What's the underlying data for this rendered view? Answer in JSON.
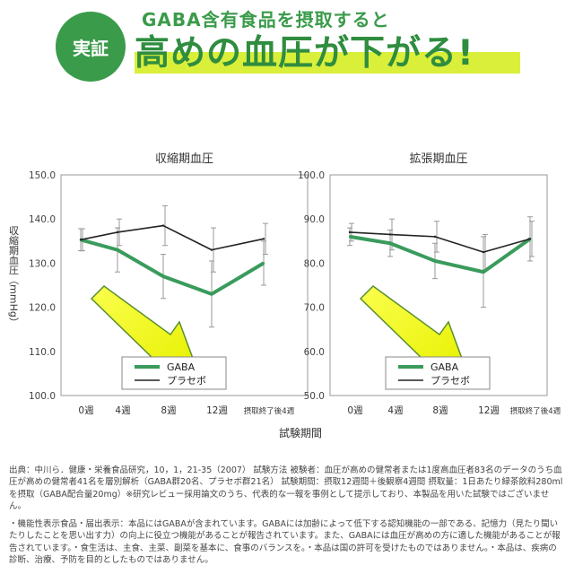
{
  "header": {
    "badge": "実証",
    "subtitle": "GABA含有食品を摂取すると",
    "title": "高めの血圧が下がる!"
  },
  "chart_data": [
    {
      "type": "line",
      "title": "収縮期血圧",
      "ylabel": "収縮期血圧（mmHg）",
      "xlabel": "試験期間",
      "categories": [
        "0週",
        "4週",
        "8週",
        "12週",
        "摂取終了後4週"
      ],
      "ylim": [
        100,
        150
      ],
      "yticks": [
        "100.0",
        "110.0",
        "120.0",
        "130.0",
        "140.0",
        "150.0"
      ],
      "series": [
        {
          "name": "GABA",
          "color": "#3a9b5c",
          "values": [
            135.3,
            133,
            127,
            123,
            130
          ],
          "err": [
            2.5,
            5,
            5,
            7.5,
            5
          ]
        },
        {
          "name": "プラセボ",
          "color": "#222222",
          "values": [
            135.3,
            137,
            138.5,
            133,
            135.5
          ],
          "err": [
            2.5,
            3,
            4.5,
            5,
            3.5
          ]
        }
      ],
      "legend": "bottom-right",
      "grid": false
    },
    {
      "type": "line",
      "title": "拡張期血圧",
      "xlabel": "試験期間",
      "categories": [
        "0週",
        "4週",
        "8週",
        "12週",
        "摂取終了後4週"
      ],
      "ylim": [
        50,
        100
      ],
      "yticks": [
        "50.0",
        "60.0",
        "70.0",
        "80.0",
        "90.0",
        "100.0"
      ],
      "series": [
        {
          "name": "GABA",
          "color": "#3a9b5c",
          "values": [
            86,
            84.5,
            80.5,
            78,
            85.5
          ],
          "err": [
            2,
            3,
            4,
            8,
            5
          ]
        },
        {
          "name": "プラセボ",
          "color": "#222222",
          "values": [
            87,
            86.5,
            86,
            82.5,
            85.5
          ],
          "err": [
            2,
            3.5,
            3.5,
            4,
            4
          ]
        }
      ],
      "legend": "bottom-right",
      "grid": false
    }
  ],
  "footnotes": {
    "source": "出典：中川ら．健康・栄養食品研究，10，1，21-35（2007） 試験方法 被験者：血圧が高めの健常者または1度高血圧者83名のデータのうち血圧が高めの健常者41名を層別解析（GABA群20名、プラセボ群21名） 試験期間：摂取12週間＋後観察4週間 摂取量：1日あたり緑茶飲料280mlを摂取（GABA配合量20mg）※研究レビュー採用論文のうち、代表的な一報を事例として提示しており、本製品を用いた試験ではございません。",
    "notice": "・機能性表示食品・届出表示：本品にはGABAが含まれています。GABAには加齢によって低下する認知機能の一部である、記憶力（見たり聞いたりしたことを思い出す力）の向上に役立つ機能があることが報告されています。また、GABAには血圧が高めの方に適した機能があることが報告されています。・食生活は、主食、主菜、副菜を基本に、食事のバランスを。・本品は国の許可を受けたものではありません。・本品は、疾病の診断、治療、予防を目的としたものではありません。"
  }
}
